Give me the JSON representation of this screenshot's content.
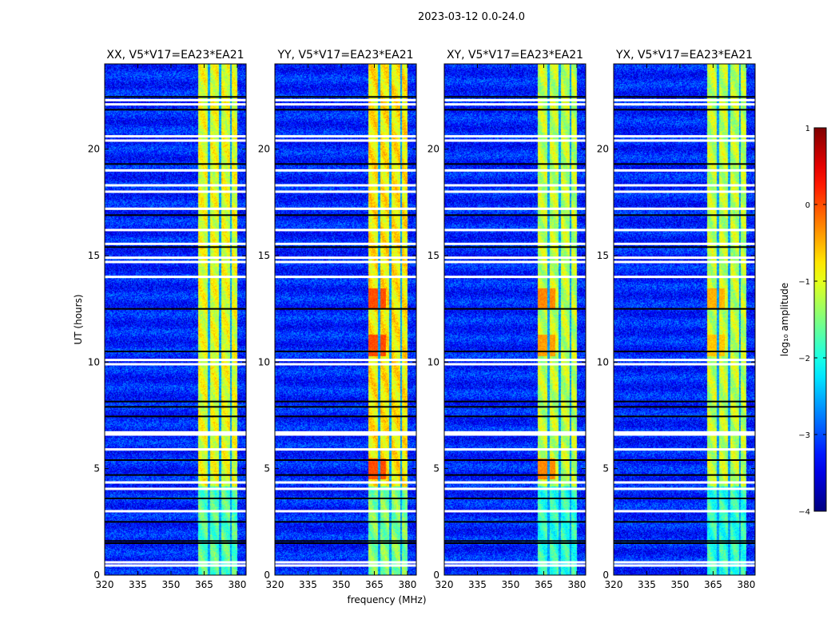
{
  "chart_data": {
    "type": "heatmap",
    "suptitle": "2023-03-12 0.0-24.0",
    "xlabel": "frequency (MHz)",
    "ylabel": "UT (hours)",
    "xlim": [
      320,
      384
    ],
    "ylim": [
      0,
      24
    ],
    "xticks": [
      "320",
      "335",
      "350",
      "365",
      "380"
    ],
    "xtick_values": [
      320,
      335,
      350,
      365,
      380
    ],
    "yticks": [
      "0",
      "5",
      "10",
      "15",
      "20"
    ],
    "ytick_values": [
      0,
      5,
      10,
      15,
      20
    ],
    "panels": [
      {
        "title": "XX, V5*V17=EA23*EA21",
        "rfi_level": -1.0,
        "hot_spots": []
      },
      {
        "title": "YY, V5*V17=EA23*EA21",
        "rfi_level": -0.8,
        "hot_spots": [
          [
            5.0,
            0.0
          ],
          [
            10.8,
            0.0
          ],
          [
            13.0,
            0.0
          ]
        ]
      },
      {
        "title": "XY, V5*V17=EA23*EA21",
        "rfi_level": -1.2,
        "hot_spots": [
          [
            5.0,
            -0.3
          ],
          [
            10.8,
            -0.4
          ],
          [
            13.0,
            -0.3
          ]
        ]
      },
      {
        "title": "YX, V5*V17=EA23*EA21",
        "rfi_level": -1.2,
        "hot_spots": [
          [
            10.8,
            -0.6
          ],
          [
            13.0,
            -0.5
          ]
        ]
      }
    ],
    "background_level": -3.2,
    "rfi_band_mhz": [
      362,
      380
    ],
    "rfi_gaps_mhz": [
      367,
      372,
      377
    ],
    "flagged_white_hours": [
      0.45,
      0.6,
      3.0,
      4.05,
      4.35,
      5.9,
      6.6,
      6.7,
      9.9,
      10.1,
      14.0,
      14.7,
      14.9,
      15.55,
      16.2,
      17.2,
      18.0,
      18.3,
      19.0,
      20.4,
      20.6,
      22.1,
      22.3
    ],
    "flagged_black_hours": [
      1.5,
      1.6,
      2.5,
      3.6,
      4.7,
      5.4,
      7.45,
      7.9,
      8.15,
      10.5,
      12.5,
      15.4,
      16.9,
      19.3,
      21.85,
      22.45
    ],
    "colorbar": {
      "label": "log₁₀ amplitude",
      "range": [
        -4,
        1
      ],
      "ticks": [
        "1",
        "0",
        "−1",
        "−2",
        "−3",
        "−4"
      ],
      "tick_values": [
        1,
        0,
        -1,
        -2,
        -3,
        -4
      ],
      "colormap": "jet"
    }
  }
}
